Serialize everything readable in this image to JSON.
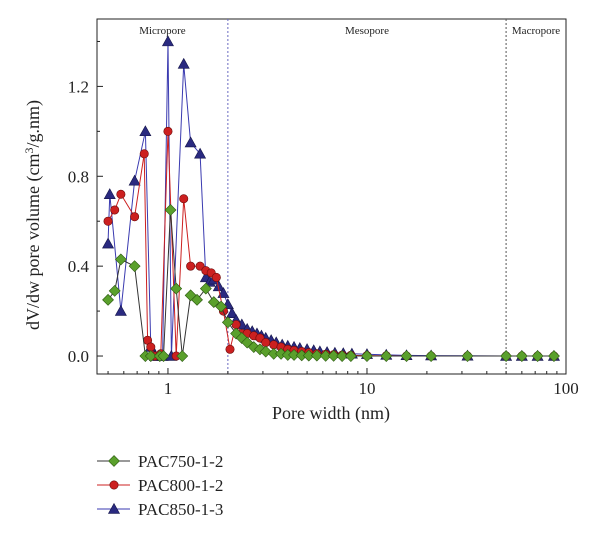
{
  "chart_data": {
    "type": "line",
    "xlabel": "Pore width (nm)",
    "ylabel": "dV/dw pore volume (cm3/g.nm)",
    "ylabel_main": "dV/dw pore volume (cm",
    "ylabel_sup": "3",
    "ylabel_tail": "/g.nm)",
    "x_scale": "log",
    "xlim": [
      0.44,
      100
    ],
    "ylim": [
      -0.08,
      1.5
    ],
    "x_ticks": [
      1,
      10,
      100
    ],
    "x_tick_labels": [
      "1",
      "10",
      "100"
    ],
    "y_ticks": [
      0.0,
      0.4,
      0.8,
      1.2
    ],
    "y_tick_labels": [
      "0.0",
      "0.4",
      "0.8",
      "1.2"
    ],
    "grid": false,
    "legend_position": "bottom-left, below plot",
    "regions": [
      {
        "label": "Micropore",
        "from": 0.44,
        "to": 2
      },
      {
        "label": "Mesopore",
        "from": 2,
        "to": 50
      },
      {
        "label": "Macropore",
        "from": 50,
        "to": 100
      }
    ],
    "boundaries": [
      2,
      50
    ],
    "series": [
      {
        "name": "PAC750-1-2",
        "marker": "diamond",
        "marker_color": "#5aa02c",
        "line_color": "#333333",
        "x": [
          0.5,
          0.54,
          0.58,
          0.68,
          0.77,
          0.82,
          0.91,
          0.95,
          1.03,
          1.1,
          1.18,
          1.3,
          1.4,
          1.55,
          1.7,
          1.85,
          2.0,
          2.2,
          2.35,
          2.5,
          2.7,
          2.9,
          3.1,
          3.4,
          3.7,
          4.0,
          4.3,
          4.7,
          5.1,
          5.6,
          6.2,
          6.8,
          7.5,
          8.3,
          10,
          12.5,
          15.8,
          21,
          32,
          50,
          60,
          72,
          87
        ],
        "y": [
          0.25,
          0.29,
          0.43,
          0.4,
          0.0,
          0.0,
          0.0,
          0.0,
          0.65,
          0.3,
          0.0,
          0.27,
          0.25,
          0.3,
          0.24,
          0.22,
          0.15,
          0.1,
          0.08,
          0.06,
          0.04,
          0.03,
          0.02,
          0.01,
          0.01,
          0.005,
          0.005,
          0.003,
          0.002,
          0.002,
          0.001,
          0.001,
          0.0,
          0.0,
          0.0,
          0.0,
          0.0,
          0.0,
          0.0,
          0.0,
          0.0,
          0.0,
          0.0
        ]
      },
      {
        "name": "PAC800-1-2",
        "marker": "circle",
        "marker_color": "#cc2020",
        "line_color": "#cc2020",
        "x": [
          0.5,
          0.54,
          0.58,
          0.68,
          0.76,
          0.79,
          0.82,
          0.86,
          0.92,
          1.0,
          1.1,
          1.2,
          1.3,
          1.45,
          1.55,
          1.65,
          1.75,
          1.9,
          2.05,
          2.2,
          2.35,
          2.5,
          2.7,
          2.9,
          3.1,
          3.4,
          3.7,
          4.0,
          4.3,
          4.7,
          5.1,
          5.6,
          6.2,
          6.8,
          7.5,
          8.3,
          10,
          12.5,
          15.8,
          21,
          32,
          50,
          60,
          72,
          87
        ],
        "y": [
          0.6,
          0.65,
          0.72,
          0.62,
          0.9,
          0.07,
          0.04,
          0.0,
          0.01,
          1.0,
          0.0,
          0.7,
          0.4,
          0.4,
          0.38,
          0.37,
          0.35,
          0.2,
          0.03,
          0.14,
          0.1,
          0.1,
          0.09,
          0.08,
          0.06,
          0.05,
          0.04,
          0.03,
          0.025,
          0.02,
          0.015,
          0.01,
          0.008,
          0.006,
          0.004,
          0.003,
          0.002,
          0.001,
          0.0,
          0.0,
          0.0,
          0.0,
          0.0,
          0.0,
          0.0
        ]
      },
      {
        "name": "PAC850-1-3",
        "marker": "triangle",
        "marker_color": "#2a2a80",
        "line_color": "#3a3ab0",
        "x": [
          0.5,
          0.51,
          0.58,
          0.68,
          0.77,
          0.82,
          0.86,
          0.9,
          0.94,
          1.0,
          1.04,
          1.2,
          1.3,
          1.45,
          1.55,
          1.62,
          1.7,
          1.8,
          1.9,
          2.0,
          2.1,
          2.2,
          2.35,
          2.5,
          2.65,
          2.8,
          2.95,
          3.1,
          3.3,
          3.5,
          3.75,
          4.0,
          4.3,
          4.6,
          5.0,
          5.4,
          5.8,
          6.3,
          6.9,
          7.6,
          8.4,
          10,
          12.5,
          15.8,
          21,
          32,
          50,
          60,
          72,
          87
        ],
        "y": [
          0.5,
          0.72,
          0.2,
          0.78,
          1.0,
          0.04,
          0.0,
          0.0,
          0.0,
          1.4,
          0.0,
          1.3,
          0.95,
          0.9,
          0.35,
          0.33,
          0.34,
          0.31,
          0.28,
          0.23,
          0.19,
          0.16,
          0.14,
          0.12,
          0.11,
          0.1,
          0.09,
          0.08,
          0.07,
          0.06,
          0.05,
          0.045,
          0.04,
          0.035,
          0.03,
          0.025,
          0.02,
          0.017,
          0.014,
          0.012,
          0.01,
          0.008,
          0.005,
          0.003,
          0.002,
          0.001,
          0.0,
          0.0,
          0.0,
          0.0
        ]
      }
    ]
  }
}
